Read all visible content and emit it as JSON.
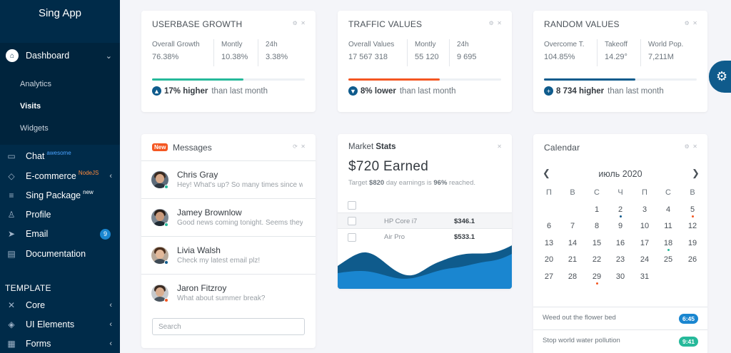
{
  "sidebar": {
    "logo": "Sing App",
    "dashboard": "Dashboard",
    "sub_items": [
      "Analytics",
      "Visits",
      "Widgets"
    ],
    "items": [
      {
        "label": "Chat",
        "sup": "awesome"
      },
      {
        "label": "E-commerce",
        "sup": "NodeJS"
      },
      {
        "label": "Sing Package",
        "sup": "new"
      },
      {
        "label": "Profile"
      },
      {
        "label": "Email",
        "badge": "9"
      },
      {
        "label": "Documentation"
      }
    ],
    "template_header": "TEMPLATE",
    "template_items": [
      "Core",
      "UI Elements",
      "Forms"
    ]
  },
  "userbase": {
    "title": "USERBASE GROWTH",
    "stats": [
      {
        "label": "Overall Growth",
        "value": "76.38%"
      },
      {
        "label": "Montly",
        "value": "10.38%"
      },
      {
        "label": "24h",
        "value": "3.38%"
      }
    ],
    "progress": 0.6,
    "trend_value": "17% higher",
    "trend_text": "than last month",
    "color": "#26b99a"
  },
  "traffic": {
    "title": "TRAFFIC VALUES",
    "stats": [
      {
        "label": "Overall Values",
        "value": "17 567 318"
      },
      {
        "label": "Montly",
        "value": "55 120"
      },
      {
        "label": "24h",
        "value": "9 695"
      }
    ],
    "progress": 0.6,
    "trend_value": "8% lower",
    "trend_text": "than last month",
    "color": "#f45722"
  },
  "random": {
    "title": "RANDOM VALUES",
    "stats": [
      {
        "label": "Overcome T.",
        "value": "104.85%"
      },
      {
        "label": "Takeoff",
        "value": "14.29°"
      },
      {
        "label": "World Pop.",
        "value": "7,211M"
      }
    ],
    "progress": 0.6,
    "trend_value": "8 734 higher",
    "trend_text": "than last month",
    "color": "#0f5b8c"
  },
  "messages": {
    "badge": "New",
    "title": "Messages",
    "items": [
      {
        "name": "Chris Gray",
        "text": "Hey! What's up? So many times since we",
        "status": "#26b99a"
      },
      {
        "name": "Jamey Brownlow",
        "text": "Good news coming tonight. Seems they agreed",
        "status": "#26b99a"
      },
      {
        "name": "Livia Walsh",
        "text": "Check my latest email plz!",
        "status": "#0f5b8c"
      },
      {
        "name": "Jaron Fitzroy",
        "text": "What about summer break?",
        "status": "#f45722"
      }
    ],
    "search_placeholder": "Search"
  },
  "market": {
    "title_prefix": "Market",
    "title_bold": "Stats",
    "earned": "$720 Earned",
    "target_prefix": "Target",
    "target_amount": "$820",
    "target_middle": "day earnings is",
    "target_percent": "96%",
    "target_suffix": "reached.",
    "rows": [
      {
        "name": "HP Core i7",
        "price": "$346.1"
      },
      {
        "name": "Air Pro",
        "price": "$533.1"
      }
    ]
  },
  "calendar": {
    "title": "Calendar",
    "month": "июль 2020",
    "weekdays": [
      "П",
      "В",
      "С",
      "Ч",
      "П",
      "С",
      "В"
    ],
    "start_offset": 2,
    "days": 31,
    "event_days": [
      {
        "day": 2,
        "color": "#0f5b8c"
      },
      {
        "day": 5,
        "color": "#f45722"
      },
      {
        "day": 18,
        "color": "#26b99a"
      },
      {
        "day": 29,
        "color": "#f45722"
      }
    ],
    "events": [
      {
        "text": "Weed out the flower bed",
        "time": "6:45",
        "color": "#1a86d0"
      },
      {
        "text": "Stop world water pollution",
        "time": "9:41",
        "color": "#26b99a"
      }
    ]
  }
}
